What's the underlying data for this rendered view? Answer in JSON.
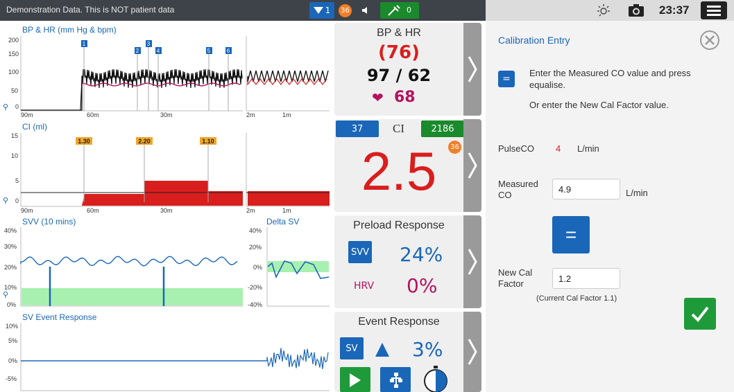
{
  "topbar": {
    "banner": "Demonstration Data. This is NOT patient data",
    "alarm_count": "1",
    "notification_count": "36",
    "infusion_count": "0",
    "time": "23:37",
    "icons": [
      "alarm-down-icon",
      "speaker-icon",
      "syringe-icon",
      "brightness-icon",
      "camera-icon",
      "menu-icon"
    ]
  },
  "charts": {
    "bp_hr": {
      "title": "BP & HR (mm Hg & bpm)",
      "y_ticks": [
        "200",
        "150",
        "100",
        "50",
        "0"
      ],
      "x_ticks": [
        "90m",
        "60m",
        "30m"
      ],
      "x_ticks_zoom": [
        "2m",
        "1m"
      ],
      "markers": [
        "1",
        "2",
        "3",
        "4",
        "5",
        "6"
      ]
    },
    "ci": {
      "title": "CI (ml)",
      "y_ticks": [
        "15",
        "10",
        "5",
        "0"
      ],
      "x_ticks": [
        "90m",
        "60m",
        "30m"
      ],
      "x_ticks_zoom": [
        "2m",
        "1m"
      ],
      "labels": [
        "1.30",
        "2.20",
        "1.10"
      ]
    },
    "svv": {
      "title": "SVV (10 mins)",
      "y_ticks": [
        "40%",
        "30%",
        "20%",
        "10%",
        "0%"
      ]
    },
    "delta_sv": {
      "title": "Delta SV",
      "y_ticks": [
        "40%",
        "20%",
        "0%",
        "-20%",
        "-40%"
      ]
    },
    "sv_event": {
      "title": "SV Event Response",
      "y_ticks": [
        "10%",
        "5%",
        "0%",
        "-5%"
      ]
    }
  },
  "cards": {
    "bp_hr": {
      "title": "BP & HR",
      "map": "(76)",
      "bp": "97 / 62",
      "hr": "68",
      "heart_color": "#b5125e"
    },
    "ci": {
      "title": "CI",
      "left_badge": "37",
      "right_badge": "2186",
      "notif": "36",
      "value": "2.5",
      "value_color": "#d91e1e"
    },
    "preload": {
      "title": "Preload Response",
      "svv_btn": "SVV",
      "svv_value": "24%",
      "hrv_label": "HRV",
      "hrv_value": "0%"
    },
    "event": {
      "title": "Event Response",
      "sv_btn": "SV",
      "value": "3%"
    }
  },
  "calibration": {
    "title": "Calibration Entry",
    "instruction": "Enter the Measured CO value and press equalise.",
    "instruction_alt": "Or enter the New Cal Factor value.",
    "pulseco_label": "PulseCO",
    "pulseco_value": "4",
    "pulseco_unit": "L/min",
    "measured_co_label": "Measured CO",
    "measured_co_value": "4.9",
    "measured_co_unit": "L/min",
    "equalise_label": "=",
    "new_cal_label": "New Cal Factor",
    "new_cal_value": "1.2",
    "current_cal": "(Current Cal Factor 1.1)"
  },
  "colors": {
    "accent": "#1a66b8",
    "red": "#d91e1e",
    "magenta": "#b5125e",
    "green": "#1f9a3a",
    "orange": "#f07f2a",
    "svv_band": "#a8f0b0"
  }
}
